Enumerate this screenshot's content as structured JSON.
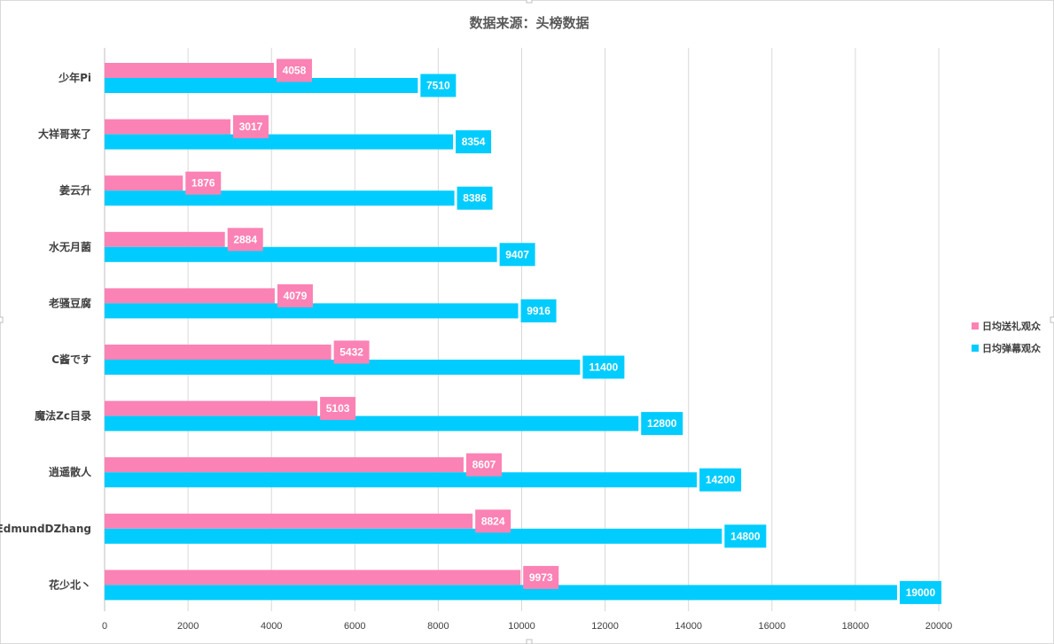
{
  "chart_data": {
    "type": "bar",
    "orientation": "horizontal",
    "title": "数据来源：头榜数据",
    "categories": [
      "少年Pi",
      "大祥哥来了",
      "姜云升",
      "水无月菌",
      "老骚豆腐",
      "C酱です",
      "魔法Zc目录",
      "逍遥散人",
      "EdmundDZhang",
      "花少北丶"
    ],
    "series": [
      {
        "name": "日均送礼观众",
        "color": "#fb82b4",
        "values": [
          4058,
          3017,
          1876,
          2884,
          4079,
          5432,
          5103,
          8607,
          8824,
          9973
        ]
      },
      {
        "name": "日均弹幕观众",
        "color": "#00ccff",
        "values": [
          7510,
          8354,
          8386,
          9407,
          9916,
          11400,
          12800,
          14200,
          14800,
          19000
        ]
      }
    ],
    "xlim": [
      0,
      20000
    ],
    "xticks": [
      0,
      2000,
      4000,
      6000,
      8000,
      10000,
      12000,
      14000,
      16000,
      18000,
      20000
    ],
    "grid": true,
    "legend_position": "right",
    "xlabel": "",
    "ylabel": ""
  }
}
